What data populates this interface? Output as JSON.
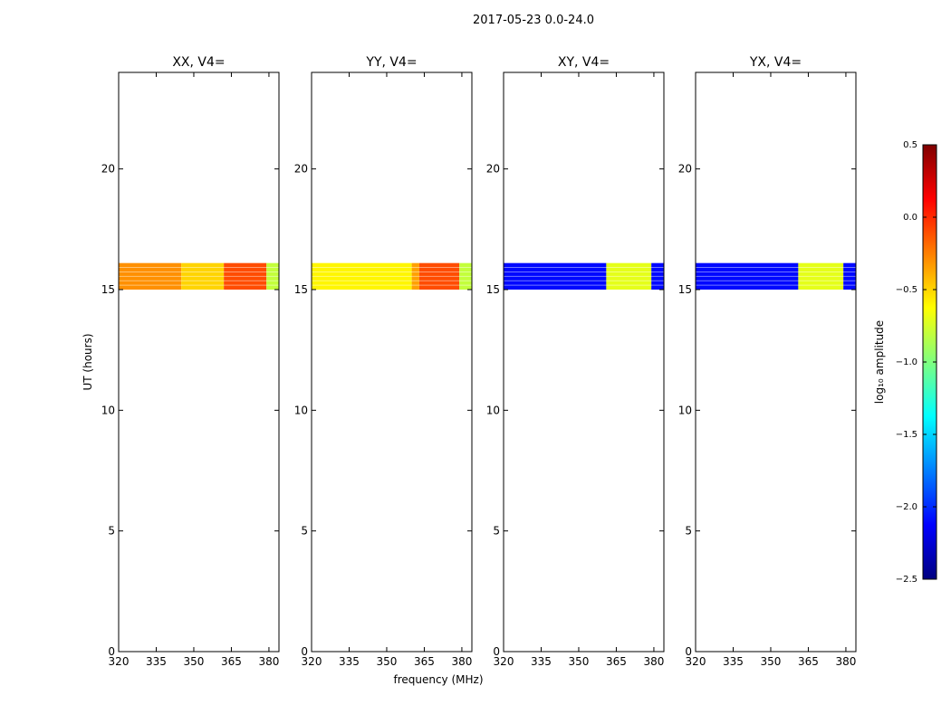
{
  "figure": {
    "suptitle": "2017-05-23 0.0-24.0",
    "xlabel": "frequency (MHz)",
    "ylabel": "UT (hours)",
    "colorbar_label": "log₁₀ amplitude"
  },
  "chart_data": {
    "type": "heatmap",
    "colormap": "jet",
    "colorbar": {
      "range": [
        -2.5,
        0.5
      ],
      "ticks": [
        0.5,
        0.0,
        -0.5,
        -1.0,
        -1.5,
        -2.0,
        -2.5
      ],
      "tick_labels": [
        "0.5",
        "0.0",
        "−0.5",
        "−1.0",
        "−1.5",
        "−2.0",
        "−2.5"
      ],
      "colors": [
        "#00007f",
        "#0000ff",
        "#007fff",
        "#00ffff",
        "#7fff7f",
        "#ffff00",
        "#ff7f00",
        "#ff0000",
        "#7f0000"
      ]
    },
    "xlim": [
      320,
      384
    ],
    "ylim": [
      0,
      24
    ],
    "xticks": [
      320,
      335,
      350,
      365,
      380
    ],
    "yticks": [
      0,
      5,
      10,
      15,
      20
    ],
    "data_time_range": [
      15.0,
      16.1
    ],
    "panels": [
      {
        "title": "XX, V4=",
        "freq_segments": [
          {
            "from": 320,
            "to": 345,
            "value": -0.3
          },
          {
            "from": 345,
            "to": 362,
            "value": -0.5
          },
          {
            "from": 362,
            "to": 379,
            "value": -0.1
          },
          {
            "from": 379,
            "to": 384,
            "value": -0.8
          }
        ]
      },
      {
        "title": "YY, V4=",
        "freq_segments": [
          {
            "from": 320,
            "to": 360,
            "value": -0.6
          },
          {
            "from": 360,
            "to": 363,
            "value": -0.35
          },
          {
            "from": 363,
            "to": 379,
            "value": -0.1
          },
          {
            "from": 379,
            "to": 384,
            "value": -0.8
          }
        ]
      },
      {
        "title": "XY, V4=",
        "freq_segments": [
          {
            "from": 320,
            "to": 361,
            "value": -2.1
          },
          {
            "from": 361,
            "to": 379,
            "value": -0.7
          },
          {
            "from": 379,
            "to": 384,
            "value": -2.1
          }
        ]
      },
      {
        "title": "YX, V4=",
        "freq_segments": [
          {
            "from": 320,
            "to": 361,
            "value": -2.1
          },
          {
            "from": 361,
            "to": 379,
            "value": -0.7
          },
          {
            "from": 379,
            "to": 384,
            "value": -2.1
          }
        ]
      }
    ]
  }
}
